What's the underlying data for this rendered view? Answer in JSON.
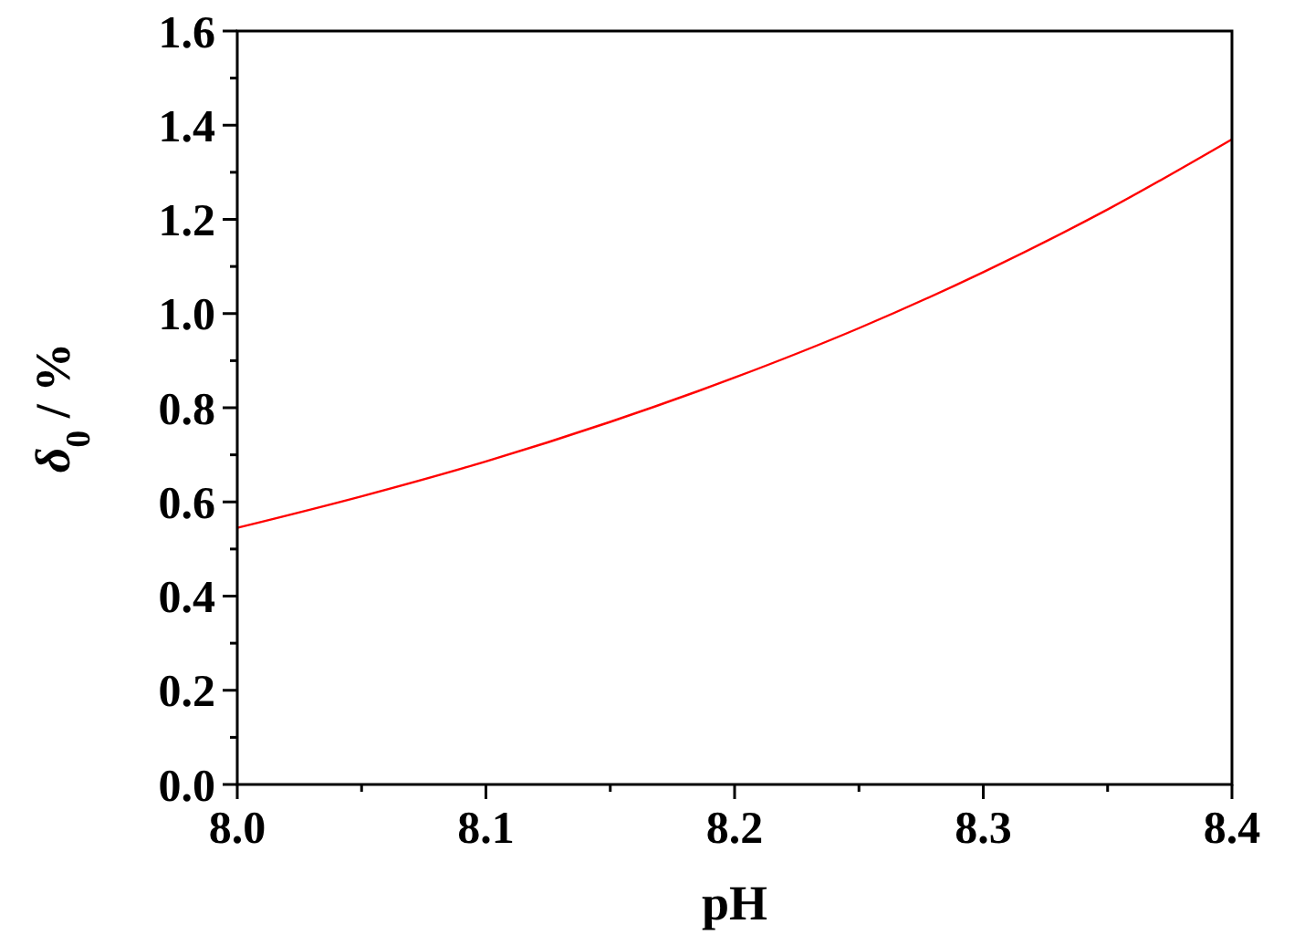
{
  "chart_data": {
    "type": "line",
    "xlabel": "pH",
    "ylabel": "δ$_{0}$ / %",
    "x": [
      8.0,
      8.05,
      8.1,
      8.15,
      8.2,
      8.25,
      8.3,
      8.35,
      8.4
    ],
    "series": [
      {
        "color": "#ff0000",
        "values": [
          0.545,
          0.612,
          0.686,
          0.77,
          0.864,
          0.969,
          1.088,
          1.221,
          1.37
        ]
      }
    ],
    "xlim": [
      8.0,
      8.4
    ],
    "ylim": [
      0,
      1.6
    ],
    "xticks": [
      {
        "value": 8.0,
        "label": "8.0"
      },
      {
        "value": 8.05,
        "label": null
      },
      {
        "value": 8.1,
        "label": "8.1"
      },
      {
        "value": 8.15,
        "label": null
      },
      {
        "value": 8.2,
        "label": "8.2"
      },
      {
        "value": 8.25,
        "label": null
      },
      {
        "value": 8.3,
        "label": "8.3"
      },
      {
        "value": 8.35,
        "label": null
      },
      {
        "value": 8.4,
        "label": "8.4"
      }
    ],
    "yticks": [
      {
        "value": 0,
        "label": "0.0"
      },
      {
        "value": 0.1,
        "label": null
      },
      {
        "value": 0.2,
        "label": "0.2"
      },
      {
        "value": 0.3,
        "label": null
      },
      {
        "value": 0.4,
        "label": "0.4"
      },
      {
        "value": 0.5,
        "label": null
      },
      {
        "value": 0.6,
        "label": "0.6"
      },
      {
        "value": 0.7,
        "label": null
      },
      {
        "value": 0.8,
        "label": "0.8"
      },
      {
        "value": 0.9,
        "label": null
      },
      {
        "value": 1.0,
        "label": "1.0"
      },
      {
        "value": 1.1,
        "label": null
      },
      {
        "value": 1.2,
        "label": "1.2"
      },
      {
        "value": 1.3,
        "label": null
      },
      {
        "value": 1.4,
        "label": "1.4"
      },
      {
        "value": 1.5,
        "label": null
      },
      {
        "value": 1.6,
        "label": "1.6"
      }
    ],
    "grid": false,
    "marker": "none",
    "line_style": "solid"
  }
}
